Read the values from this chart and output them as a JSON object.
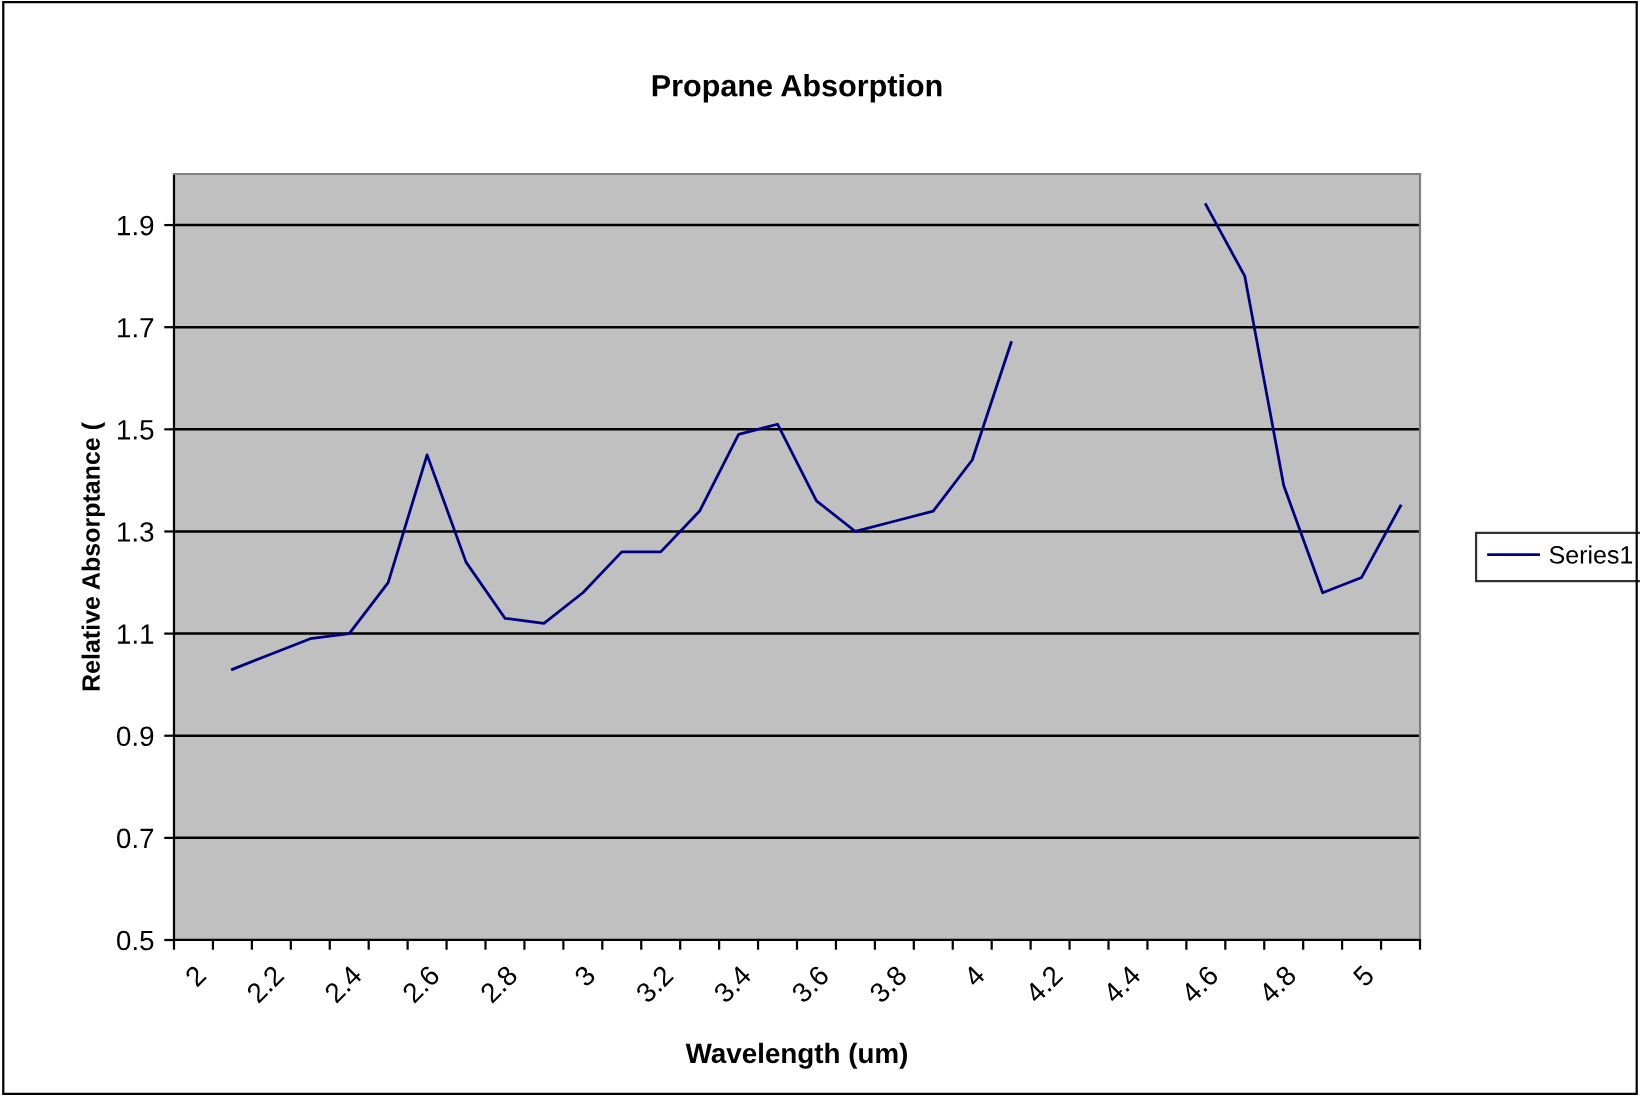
{
  "chart_data": {
    "type": "line",
    "title": "Propane Absorption",
    "xlabel": "Wavelength (um)",
    "ylabel": "Relative Absorptance (",
    "categories": [
      "2",
      null,
      "2.2",
      null,
      "2.4",
      null,
      "2.6",
      null,
      "2.8",
      null,
      "3",
      null,
      "3.2",
      null,
      "3.4",
      null,
      "3.6",
      null,
      "3.8",
      null,
      "4",
      null,
      "4.2",
      null,
      "4.4",
      null,
      "4.6",
      null,
      "4.8",
      null,
      "5",
      null
    ],
    "series": [
      {
        "name": "Series1",
        "color": "#000080",
        "values": [
          null,
          1.03,
          1.06,
          1.09,
          1.1,
          1.2,
          1.45,
          1.24,
          1.13,
          1.12,
          1.18,
          1.26,
          1.26,
          1.34,
          1.49,
          1.51,
          1.36,
          1.3,
          1.32,
          1.34,
          1.44,
          1.67,
          null,
          null,
          null,
          null,
          1.94,
          1.8,
          1.39,
          1.18,
          1.21,
          1.35
        ]
      }
    ],
    "ylim": [
      0.5,
      2.0
    ],
    "yticks": [
      0.5,
      0.7,
      0.9,
      1.1,
      1.3,
      1.5,
      1.7,
      1.9
    ],
    "grid": "y",
    "legend": "right",
    "marker": "none",
    "line_style": "solid"
  }
}
